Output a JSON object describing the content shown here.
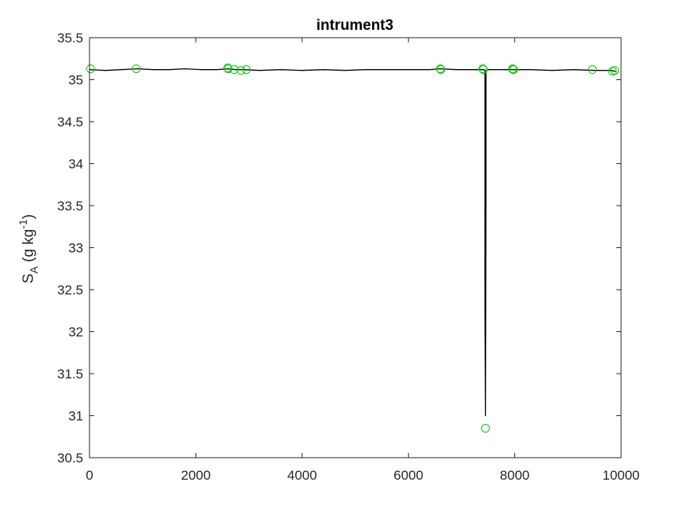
{
  "chart_data": {
    "type": "line",
    "title": "intrument3",
    "xlabel": "",
    "ylabel": {
      "base": "S",
      "subscript": "A",
      "unit_prefix": " (g kg",
      "unit_exponent": "-1",
      "unit_suffix": ")"
    },
    "xlim": [
      0,
      10000
    ],
    "ylim": [
      30.5,
      35.5
    ],
    "xticks": [
      0,
      2000,
      4000,
      6000,
      8000,
      10000
    ],
    "yticks": [
      30.5,
      31,
      31.5,
      32,
      32.5,
      33,
      33.5,
      34,
      34.5,
      35,
      35.5
    ],
    "xtick_labels": [
      "0",
      "2000",
      "4000",
      "6000",
      "8000",
      "10000"
    ],
    "ytick_labels": [
      "30.5",
      "31",
      "31.5",
      "32",
      "32.5",
      "33",
      "33.5",
      "34",
      "34.5",
      "35",
      "35.5"
    ],
    "grid": false,
    "series": [
      {
        "style": "line",
        "color": "#000000",
        "x": [
          0,
          300,
          600,
          900,
          1200,
          1500,
          1800,
          2100,
          2400,
          2600,
          2750,
          2900,
          3200,
          3600,
          4000,
          4400,
          4800,
          5200,
          5600,
          6000,
          6400,
          6600,
          6900,
          7200,
          7420,
          7440,
          7440,
          7450,
          7460,
          7460,
          7500,
          7800,
          8000,
          8300,
          8700,
          9100,
          9500,
          9800,
          9900
        ],
        "y": [
          35.12,
          35.11,
          35.12,
          35.13,
          35.12,
          35.12,
          35.13,
          35.12,
          35.12,
          35.13,
          35.12,
          35.12,
          35.11,
          35.12,
          35.11,
          35.12,
          35.11,
          35.12,
          35.12,
          35.12,
          35.12,
          35.13,
          35.12,
          35.12,
          35.12,
          35.11,
          32.3,
          31.0,
          33.8,
          35.11,
          35.12,
          35.12,
          35.12,
          35.12,
          35.11,
          35.12,
          35.11,
          35.11,
          35.1
        ]
      },
      {
        "style": "markers",
        "marker": "circle",
        "color": "#00cc00",
        "x": [
          20,
          880,
          2600,
          2610,
          2720,
          2850,
          2950,
          6600,
          6610,
          7400,
          7410,
          7450,
          7960,
          7970,
          7980,
          9460,
          9840,
          9880
        ],
        "y": [
          35.13,
          35.13,
          35.14,
          35.13,
          35.12,
          35.11,
          35.12,
          35.13,
          35.12,
          35.13,
          35.12,
          30.85,
          35.13,
          35.12,
          35.12,
          35.12,
          35.1,
          35.11
        ]
      }
    ]
  }
}
